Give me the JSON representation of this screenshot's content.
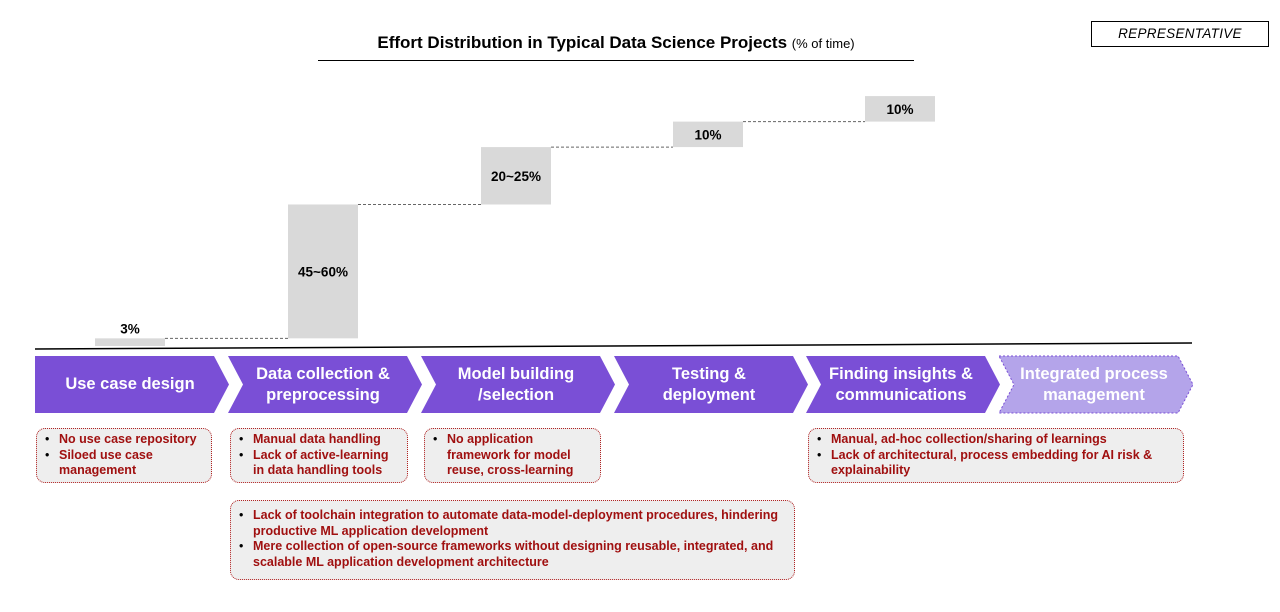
{
  "title": {
    "main": "Effort Distribution in Typical Data Science Projects",
    "sub": "(% of time)"
  },
  "badge": "REPRESENTATIVE",
  "chart_data": {
    "type": "waterfall",
    "title": "Effort Distribution in Typical Data Science Projects (% of time)",
    "categories": [
      "Use case design",
      "Data collection & preprocessing",
      "Model building /selection",
      "Testing & deployment",
      "Finding insights & communications"
    ],
    "labels": [
      "3%",
      "45~60%",
      "20~25%",
      "10%",
      "10%"
    ],
    "values": [
      3,
      52.5,
      22.5,
      10,
      10
    ],
    "unit": "% of time"
  },
  "stages": [
    {
      "label": "Use case design",
      "color": "#7a4fd6"
    },
    {
      "label": "Data collection &\npreprocessing",
      "color": "#7a4fd6"
    },
    {
      "label": "Model building\n/selection",
      "color": "#7a4fd6"
    },
    {
      "label": "Testing &\ndeployment",
      "color": "#7a4fd6"
    },
    {
      "label": "Finding insights &\ncommunications",
      "color": "#7a4fd6"
    },
    {
      "label": "Integrated process\nmanagement",
      "color": "#b4a4ea"
    }
  ],
  "issues": {
    "use_case": [
      "No use case repository",
      "Siloed use case management"
    ],
    "data": [
      "Manual data handling",
      "Lack of active-learning in data handling tools"
    ],
    "model": [
      "No application framework for model reuse, cross-learning"
    ],
    "insights": [
      "Manual, ad-hoc collection/sharing of learnings",
      "Lack of architectural, process embedding for AI risk & explainability"
    ],
    "toolchain": [
      "Lack of toolchain integration to automate data-model-deployment procedures, hindering productive ML application development",
      "Mere collection of open-source frameworks without designing reusable, integrated, and scalable ML application development architecture"
    ]
  }
}
